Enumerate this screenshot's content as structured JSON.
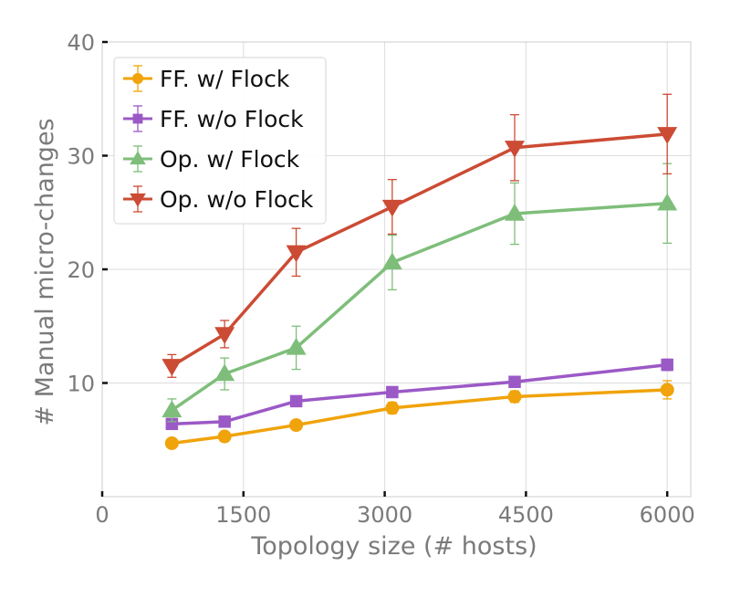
{
  "chart_data": {
    "type": "line",
    "xlabel": "Topology size (# hosts)",
    "ylabel": "# Manual micro-changes",
    "xlim": [
      0,
      6250
    ],
    "ylim": [
      0,
      40
    ],
    "xticks": [
      0,
      1500,
      3000,
      4500,
      6000
    ],
    "xtick_labels": [
      "0",
      "1500",
      "3000",
      "4500",
      "6000"
    ],
    "yticks": [
      10,
      20,
      30,
      40
    ],
    "ytick_labels": [
      "10",
      "20",
      "30",
      "40"
    ],
    "grid": true,
    "legend_position": "top-left",
    "x": [
      740,
      1300,
      2060,
      3080,
      4380,
      6000
    ],
    "series": [
      {
        "name": "FF. w/ Flock",
        "color": "#f0a30a",
        "marker": "circle",
        "values": [
          4.7,
          5.3,
          6.3,
          7.8,
          8.8,
          9.4
        ],
        "errors": [
          0.3,
          0.3,
          0.4,
          0.5,
          0.5,
          0.8
        ]
      },
      {
        "name": "FF. w/o Flock",
        "color": "#9b59c6",
        "marker": "square",
        "values": [
          6.4,
          6.6,
          8.4,
          9.2,
          10.1,
          11.6
        ],
        "errors": [
          0.3,
          0.3,
          0.4,
          0.4,
          0.4,
          0.5
        ]
      },
      {
        "name": "Op. w/ Flock",
        "color": "#7ebe7a",
        "marker": "triangle-up",
        "values": [
          7.6,
          10.8,
          13.1,
          20.6,
          24.9,
          25.8
        ],
        "errors": [
          1.0,
          1.4,
          1.9,
          2.4,
          2.7,
          3.5
        ]
      },
      {
        "name": "Op. w/o Flock",
        "color": "#cc4b34",
        "marker": "triangle-down",
        "values": [
          11.5,
          14.3,
          21.5,
          25.5,
          30.7,
          31.9
        ],
        "errors": [
          1.0,
          1.2,
          2.1,
          2.4,
          2.9,
          3.5
        ]
      }
    ]
  }
}
